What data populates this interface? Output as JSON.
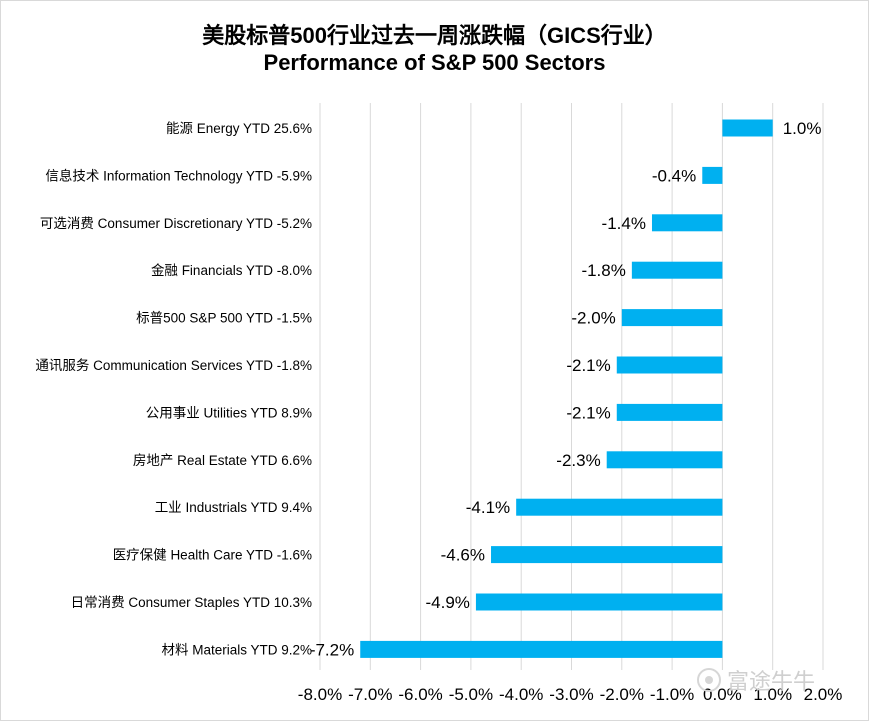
{
  "title_cn": "美股标普500行业过去一周涨跌幅（GICS行业）",
  "title_en": "Performance of S&P 500 Sectors",
  "watermark": "富途牛牛",
  "chart_data": {
    "type": "bar",
    "orientation": "horizontal",
    "categories": [
      "能源 Energy YTD 25.6%",
      "信息技术 Information Technology YTD -5.9%",
      "可选消费 Consumer Discretionary YTD -5.2%",
      "金融 Financials YTD -8.0%",
      "标普500 S&P 500 YTD -1.5%",
      "通讯服务 Communication Services YTD -1.8%",
      "公用事业 Utilities YTD 8.9%",
      "房地产 Real Estate YTD 6.6%",
      "工业 Industrials YTD 9.4%",
      "医疗保健 Health Care YTD -1.6%",
      "日常消费 Consumer Staples YTD 10.3%",
      "材料 Materials YTD 9.2%"
    ],
    "values": [
      1.0,
      -0.4,
      -1.4,
      -1.8,
      -2.0,
      -2.1,
      -2.1,
      -2.3,
      -4.1,
      -4.6,
      -4.9,
      -7.2
    ],
    "value_labels": [
      "1.0%",
      "-0.4%",
      "-1.4%",
      "-1.8%",
      "-2.0%",
      "-2.1%",
      "-2.1%",
      "-2.3%",
      "-4.1%",
      "-4.6%",
      "-4.9%",
      "-7.2%"
    ],
    "xlim": [
      -8.0,
      2.0
    ],
    "xticks": [
      -8,
      -7,
      -6,
      -5,
      -4,
      -3,
      -2,
      -1,
      0,
      1,
      2
    ],
    "xtick_labels": [
      "-8.0%",
      "-7.0%",
      "-6.0%",
      "-5.0%",
      "-4.0%",
      "-3.0%",
      "-2.0%",
      "-1.0%",
      "0.0%",
      "1.0%",
      "2.0%"
    ],
    "grid": true,
    "bar_color": "#00b0f0"
  }
}
